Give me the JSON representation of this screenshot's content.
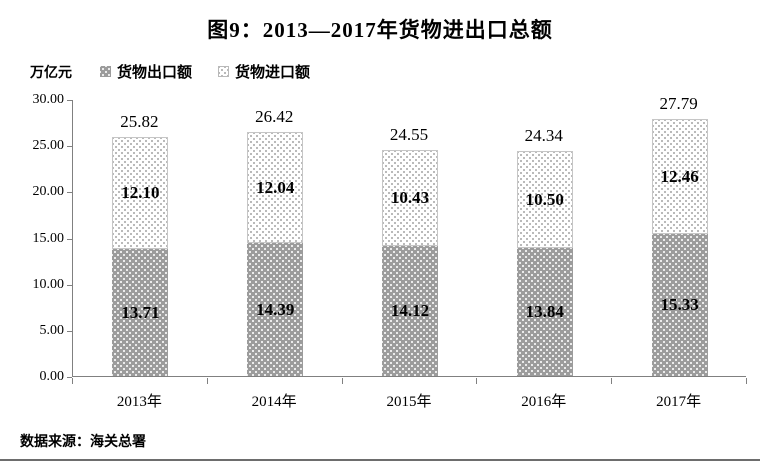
{
  "title": "图9：2013—2017年货物进出口总额",
  "unit_label": "万亿元",
  "legend": [
    {
      "label": "货物出口额",
      "swatch": "export-swatch"
    },
    {
      "label": "货物进口额",
      "swatch": "import-swatch"
    }
  ],
  "source": "数据来源：海关总署",
  "colors": {
    "export_fill": "#9c9c9c",
    "import_fill": "#ffffff",
    "import_dot": "#a8a8a8",
    "axis": "#808080",
    "text": "#000000"
  },
  "chart_data": {
    "type": "bar",
    "stacked": true,
    "title": "图9：2013—2017年货物进出口总额",
    "ylabel": "万亿元",
    "categories": [
      "2013年",
      "2014年",
      "2015年",
      "2016年",
      "2017年"
    ],
    "series": [
      {
        "name": "货物出口额",
        "values": [
          13.71,
          14.39,
          14.12,
          13.84,
          15.33
        ]
      },
      {
        "name": "货物进口额",
        "values": [
          12.1,
          12.04,
          10.43,
          10.5,
          12.46
        ]
      }
    ],
    "totals": [
      25.82,
      26.42,
      24.55,
      24.34,
      27.79
    ],
    "ylim": [
      0,
      30
    ],
    "ytick_labels": [
      "0.00",
      "5.00",
      "10.00",
      "15.00",
      "20.00",
      "25.00",
      "30.00"
    ],
    "grid": false,
    "legend_position": "top"
  }
}
